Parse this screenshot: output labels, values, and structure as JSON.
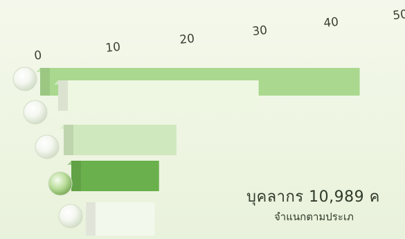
{
  "chart_data": {
    "type": "bar",
    "orientation": "horizontal",
    "ticks": [
      "0",
      "10",
      "20",
      "30",
      "40",
      "50"
    ],
    "xlim": [
      0,
      50
    ],
    "values": [
      51,
      32,
      18,
      14,
      11
    ],
    "colors": [
      "#a9d88e",
      "#eef7e2",
      "#cfe8bd",
      "#6ab04c",
      "#f3f8ec"
    ],
    "grid": false,
    "legend": "none"
  },
  "caption": {
    "main": "บุคลากร 10,989 ค",
    "sub": "จำแนกตามประเภ"
  }
}
